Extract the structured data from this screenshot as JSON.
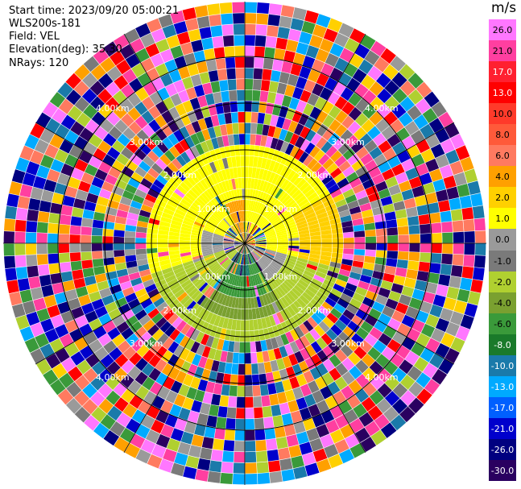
{
  "header": {
    "start_time": "Start time: 2023/09/20 05:00:21",
    "instrument": "WLS200s-181",
    "field": "Field: VEL",
    "elevation": "Elevation(deg): 35.30",
    "nrays": "NRays: 120"
  },
  "colorbar": {
    "unit": "m/s",
    "ticks": [
      "26.0",
      "21.0",
      "17.0",
      "13.0",
      "10.0",
      "8.0",
      "6.0",
      "4.0",
      "2.0",
      "1.0",
      "0.0",
      "-1.0",
      "-2.0",
      "-4.0",
      "-6.0",
      "-8.0",
      "-10.0",
      "-13.0",
      "-17.0",
      "-21.0",
      "-26.0",
      "-30.0"
    ],
    "colors": [
      "#f7f",
      "#ff3fa0",
      "#ff2030",
      "#ff0000",
      "#ff3a2a",
      "#ff5a3a",
      "#ff7a60",
      "#ffa000",
      "#ffd000",
      "#ffff00",
      "#9a9a9a",
      "#7a7a7a",
      "#b0d030",
      "#7aa030",
      "#3a9a3a",
      "#1a7a2a",
      "#1a7aaa",
      "#00aaff",
      "#0060ff",
      "#0000cc",
      "#000080",
      "#2a0060"
    ]
  },
  "range_rings": {
    "labels": [
      "1.00km",
      "2.00km",
      "3.00km",
      "4.00km"
    ]
  },
  "ppi": {
    "n_rays": 120,
    "n_gates": 22
  }
}
